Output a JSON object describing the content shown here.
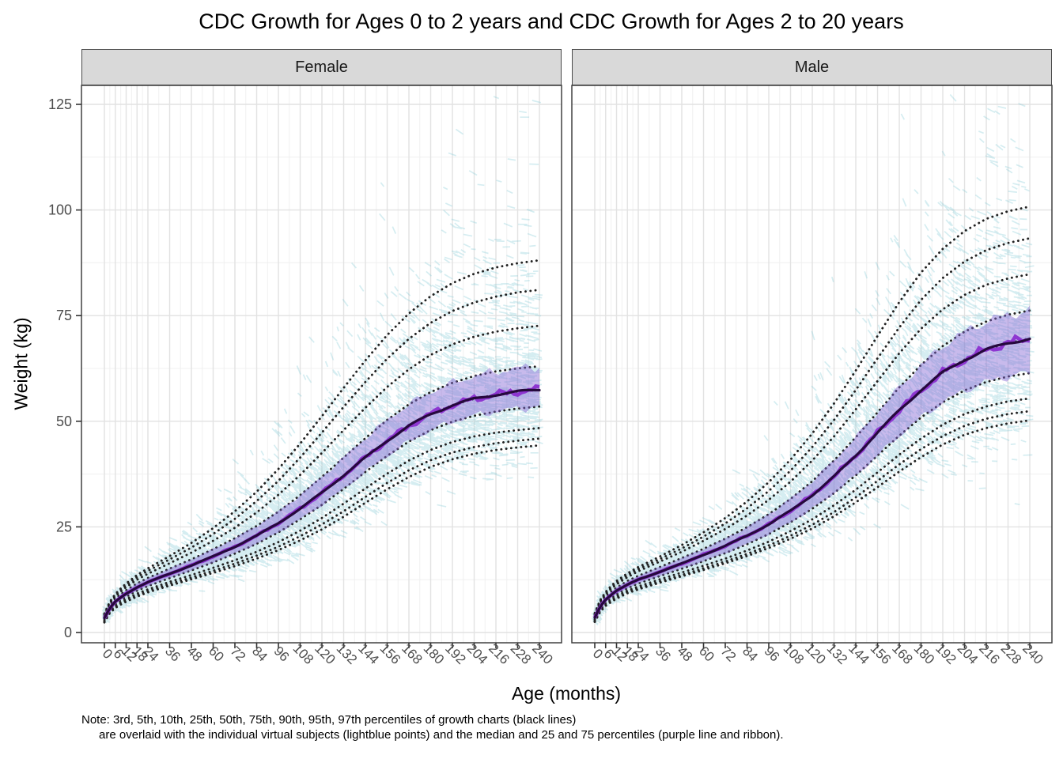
{
  "chart_data": {
    "type": "line",
    "title": "CDC Growth for Ages 0 to 2 years and CDC Growth for Ages 2 to 20 years",
    "xlabel": "Age (months)",
    "ylabel": "Weight (kg)",
    "x_ticks": [
      0,
      6,
      12,
      18,
      24,
      36,
      48,
      60,
      72,
      84,
      96,
      108,
      120,
      132,
      144,
      156,
      168,
      180,
      192,
      204,
      216,
      228,
      240
    ],
    "y_ticks": [
      0,
      25,
      50,
      75,
      100,
      125
    ],
    "xlim": [
      0,
      240
    ],
    "ylim": [
      0,
      129
    ],
    "grid": "major and minor, light gray on white, black panel border",
    "legend_position": "none",
    "percentile_labels": [
      "3rd",
      "5th",
      "10th",
      "25th",
      "50th",
      "75th",
      "90th",
      "95th",
      "97th"
    ],
    "ages_months": [
      0,
      3,
      6,
      9,
      12,
      18,
      24,
      36,
      48,
      60,
      72,
      84,
      96,
      108,
      120,
      132,
      144,
      156,
      168,
      180,
      192,
      204,
      216,
      228,
      240
    ],
    "facets": [
      {
        "label": "Female",
        "percentiles": {
          "3rd": [
            2.4,
            4.6,
            5.8,
            6.6,
            7.3,
            8.5,
            9.5,
            11.1,
            12.6,
            14.1,
            15.7,
            17.5,
            19.5,
            21.8,
            24.4,
            27.4,
            30.7,
            33.9,
            36.8,
            39.2,
            41.0,
            42.3,
            43.2,
            43.8,
            44.3
          ],
          "5th": [
            2.5,
            4.8,
            6.0,
            6.9,
            7.6,
            8.8,
            9.8,
            11.5,
            13.0,
            14.6,
            16.3,
            18.2,
            20.3,
            22.8,
            25.6,
            28.7,
            32.1,
            35.4,
            38.4,
            40.8,
            42.6,
            43.9,
            44.8,
            45.4,
            45.9
          ],
          "10th": [
            2.7,
            5.0,
            6.3,
            7.2,
            7.9,
            9.2,
            10.2,
            12.0,
            13.6,
            15.3,
            17.1,
            19.1,
            21.4,
            24.1,
            27.1,
            30.5,
            34.1,
            37.6,
            40.7,
            43.2,
            45.1,
            46.4,
            47.3,
            47.9,
            48.4
          ],
          "25th": [
            3.0,
            5.4,
            6.8,
            7.7,
            8.5,
            9.9,
            11.0,
            12.9,
            14.7,
            16.6,
            18.7,
            21.0,
            23.7,
            26.8,
            30.2,
            34.0,
            38.0,
            41.8,
            45.2,
            47.9,
            49.9,
            51.3,
            52.3,
            53.0,
            53.5
          ],
          "50th": [
            3.4,
            5.8,
            7.3,
            8.3,
            9.2,
            10.7,
            11.9,
            13.9,
            15.9,
            18.0,
            20.3,
            22.9,
            25.9,
            29.3,
            33.1,
            37.2,
            41.4,
            45.4,
            48.9,
            51.7,
            53.8,
            55.3,
            56.3,
            57.0,
            57.5
          ],
          "75th": [
            3.8,
            6.3,
            7.9,
            9.0,
            10.0,
            11.6,
            12.9,
            15.1,
            17.3,
            19.7,
            22.3,
            25.2,
            28.6,
            32.5,
            36.8,
            41.4,
            46.0,
            50.3,
            54.0,
            56.9,
            59.1,
            60.7,
            61.8,
            62.5,
            63.0
          ],
          "90th": [
            4.1,
            6.8,
            8.5,
            9.7,
            10.7,
            12.5,
            13.9,
            16.4,
            18.9,
            21.7,
            24.8,
            28.4,
            32.6,
            37.3,
            42.5,
            47.9,
            53.2,
            58.1,
            62.3,
            65.7,
            68.2,
            70.0,
            71.2,
            72.0,
            72.6
          ],
          "95th": [
            4.3,
            7.1,
            8.8,
            10.1,
            11.2,
            13.1,
            14.6,
            17.3,
            20.1,
            23.3,
            26.9,
            31.1,
            35.9,
            41.4,
            47.3,
            53.4,
            59.3,
            64.8,
            69.5,
            73.3,
            76.1,
            78.1,
            79.5,
            80.5,
            81.1
          ],
          "97th": [
            4.5,
            7.3,
            9.1,
            10.4,
            11.6,
            13.6,
            15.2,
            18.1,
            21.2,
            24.7,
            28.7,
            33.3,
            38.7,
            44.7,
            51.2,
            57.9,
            64.4,
            70.4,
            75.5,
            79.6,
            82.7,
            84.9,
            86.4,
            87.4,
            88.1
          ]
        }
      },
      {
        "label": "Male",
        "percentiles": {
          "3rd": [
            2.5,
            4.9,
            6.3,
            7.2,
            8.0,
            9.3,
            10.2,
            11.8,
            13.3,
            14.8,
            16.4,
            18.1,
            20.0,
            22.2,
            24.6,
            27.5,
            30.8,
            34.4,
            38.1,
            41.5,
            44.5,
            46.8,
            48.4,
            49.5,
            50.2
          ],
          "5th": [
            2.6,
            5.1,
            6.5,
            7.4,
            8.2,
            9.6,
            10.5,
            12.1,
            13.6,
            15.2,
            16.8,
            18.6,
            20.6,
            22.9,
            25.5,
            28.5,
            32.0,
            35.9,
            39.8,
            43.4,
            46.5,
            48.9,
            50.6,
            51.7,
            52.4
          ],
          "10th": [
            2.8,
            5.3,
            6.8,
            7.7,
            8.6,
            9.9,
            10.9,
            12.6,
            14.2,
            15.8,
            17.5,
            19.4,
            21.5,
            24.0,
            26.8,
            30.1,
            33.8,
            37.9,
            42.1,
            45.9,
            49.2,
            51.7,
            53.5,
            54.7,
            55.4
          ],
          "25th": [
            3.1,
            5.7,
            7.2,
            8.2,
            9.1,
            10.5,
            11.6,
            13.4,
            15.1,
            16.9,
            18.8,
            20.9,
            23.3,
            26.1,
            29.3,
            33.0,
            37.2,
            41.9,
            46.6,
            50.9,
            54.5,
            57.3,
            59.3,
            60.6,
            61.4
          ],
          "50th": [
            3.5,
            6.2,
            7.8,
            8.9,
            9.9,
            11.3,
            12.5,
            14.4,
            16.3,
            18.4,
            20.5,
            22.9,
            25.6,
            28.8,
            32.5,
            36.9,
            41.9,
            47.3,
            52.6,
            57.4,
            61.5,
            64.6,
            66.9,
            68.5,
            69.6
          ],
          "75th": [
            3.9,
            6.7,
            8.4,
            9.6,
            10.6,
            12.2,
            13.4,
            15.5,
            17.6,
            19.8,
            22.2,
            24.9,
            28.0,
            31.6,
            35.8,
            40.7,
            46.2,
            52.1,
            58.0,
            63.3,
            67.8,
            71.2,
            73.6,
            75.2,
            76.2
          ],
          "90th": [
            4.2,
            7.2,
            9.0,
            10.3,
            11.4,
            13.1,
            14.5,
            16.8,
            19.1,
            21.7,
            24.5,
            27.7,
            31.4,
            35.7,
            40.7,
            46.4,
            52.8,
            59.5,
            66.1,
            71.9,
            76.5,
            79.9,
            82.3,
            83.8,
            84.8
          ],
          "95th": [
            4.4,
            7.5,
            9.3,
            10.6,
            11.8,
            13.6,
            15.0,
            17.4,
            19.9,
            22.7,
            25.8,
            29.4,
            33.5,
            38.3,
            43.9,
            50.3,
            57.4,
            64.9,
            72.2,
            78.7,
            83.9,
            87.8,
            90.5,
            92.2,
            93.3
          ],
          "97th": [
            4.6,
            7.7,
            9.6,
            11.0,
            12.2,
            14.0,
            15.5,
            18.0,
            20.7,
            23.7,
            27.1,
            31.0,
            35.6,
            40.9,
            47.1,
            54.2,
            62.0,
            70.2,
            78.2,
            85.2,
            90.8,
            95.0,
            97.9,
            99.7,
            100.8
          ]
        }
      }
    ],
    "colors": {
      "scatter": "#7cc6d4",
      "ribbon": "#8667d4",
      "subject_median": "#8b2fd0",
      "smoothed_median": "#26093d",
      "percentile_lines": "#222222",
      "grid_major": "#e2e2e2",
      "grid_minor": "#f0f0f0",
      "panel_border": "#404040",
      "strip_bg": "#d9d9d9",
      "tick_text": "#4d4d4d"
    }
  },
  "note": {
    "line1": "Note: 3rd, 5th, 10th, 25th, 50th, 75th, 90th, 95th, 97th percentiles of growth charts (black lines)",
    "line2": "are overlaid with the individual virtual subjects (lightblue points) and the median and 25 and 75 percentiles (purple line and ribbon)."
  }
}
